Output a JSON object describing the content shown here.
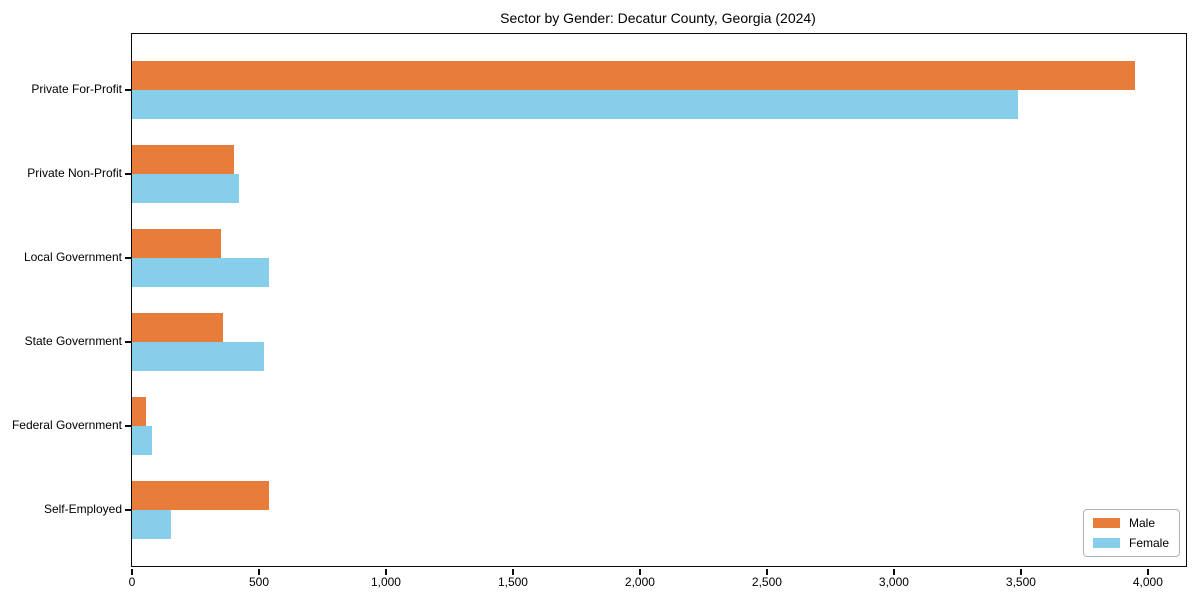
{
  "chart_data": {
    "type": "bar",
    "orientation": "horizontal",
    "title": "Sector by Gender: Decatur County, Georgia (2024)",
    "categories": [
      "Private For-Profit",
      "Private Non-Profit",
      "Local Government",
      "State Government",
      "Federal Government",
      "Self-Employed"
    ],
    "series": [
      {
        "name": "Male",
        "color": "#e87d3b",
        "values": [
          3950,
          400,
          350,
          360,
          55,
          540
        ]
      },
      {
        "name": "Female",
        "color": "#87ceeb",
        "values": [
          3490,
          420,
          540,
          520,
          80,
          155
        ]
      }
    ],
    "xlabel": "",
    "ylabel": "",
    "xlim": [
      0,
      4150
    ],
    "xticks": [
      0,
      500,
      1000,
      1500,
      2000,
      2500,
      3000,
      3500,
      4000
    ],
    "xtick_labels": [
      "0",
      "500",
      "1,000",
      "1,500",
      "2,000",
      "2,500",
      "3,000",
      "3,500",
      "4,000"
    ],
    "grid": false,
    "legend": {
      "position": "lower-right",
      "entries": [
        "Male",
        "Female"
      ]
    },
    "colors": {
      "male": "#e87d3b",
      "female": "#87ceeb",
      "spine": "#0a0a0a",
      "text": "#000000",
      "legend_border": "#b3b3b3",
      "background": "#ffffff"
    }
  }
}
